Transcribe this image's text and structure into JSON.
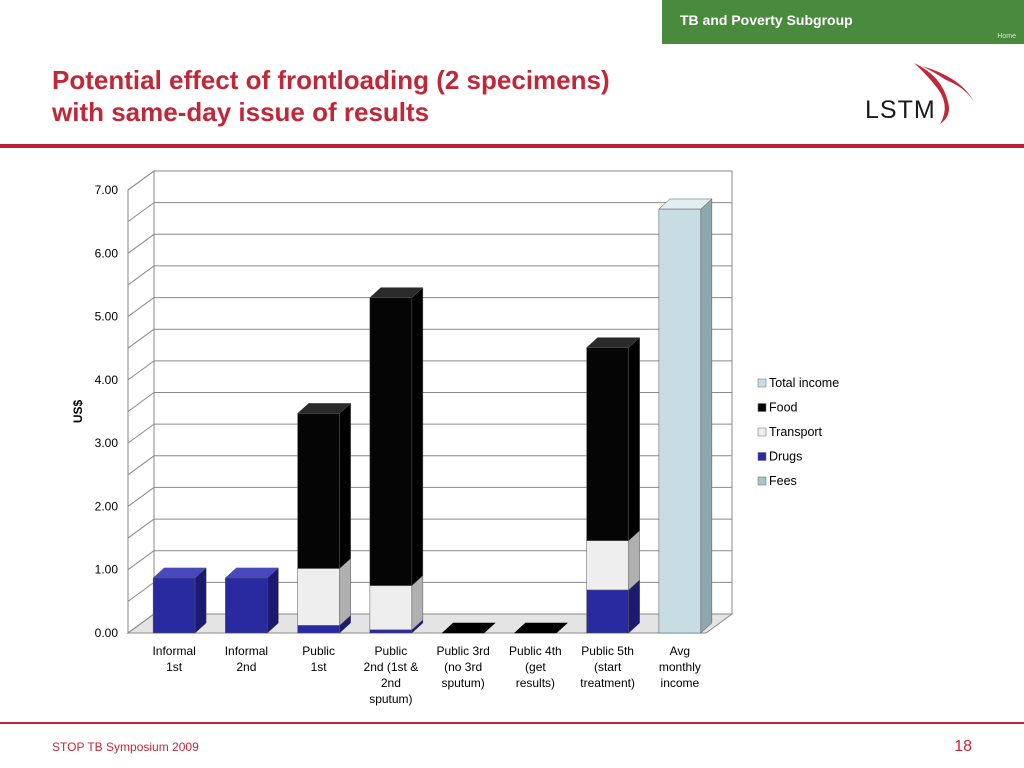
{
  "header": {
    "banner_title": "TB and Poverty Subgroup",
    "banner_home": "Home",
    "title_line1": "Potential effect of frontloading (2 specimens)",
    "title_line2": "with same-day issue of results",
    "logo_text": "LSTM"
  },
  "footer": {
    "left": "STOP TB Symposium 2009",
    "page_number": "18"
  },
  "colors": {
    "brand_red": "#c0283a",
    "banner_green": "#4a8a3c",
    "fees": "#a8c4cc",
    "drugs": "#2a2aa0",
    "transport": "#eeeeee",
    "food": "#000000",
    "total_income": "#c8dde3"
  },
  "chart_data": {
    "type": "bar",
    "stacked": true,
    "three_d": true,
    "ylabel": "US$",
    "ylim": [
      0,
      7
    ],
    "yticks": [
      "0.00",
      "1.00",
      "2.00",
      "3.00",
      "4.00",
      "5.00",
      "6.00",
      "7.00"
    ],
    "grid": true,
    "legend_position": "right",
    "categories": [
      [
        "Informal",
        "1st"
      ],
      [
        "Informal",
        "2nd"
      ],
      [
        "Public",
        "1st"
      ],
      [
        "Public",
        "2nd (1st &",
        "2nd",
        "sputum)"
      ],
      [
        "Public 3rd",
        "(no 3rd",
        "sputum)"
      ],
      [
        "Public 4th",
        "(get",
        "results)"
      ],
      [
        "Public 5th",
        "(start",
        "treatment)"
      ],
      [
        "Avg",
        "monthly",
        "income"
      ]
    ],
    "series": [
      {
        "name": "Fees",
        "values": [
          0,
          0,
          0,
          0,
          0,
          0,
          0,
          0
        ]
      },
      {
        "name": "Drugs",
        "values": [
          0.87,
          0.87,
          0.12,
          0.05,
          0,
          0,
          0.68,
          0
        ]
      },
      {
        "name": "Transport",
        "values": [
          0,
          0,
          0.9,
          0.7,
          0,
          0,
          0.78,
          0
        ]
      },
      {
        "name": "Food",
        "values": [
          0,
          0,
          2.45,
          4.55,
          0,
          0,
          3.05,
          0
        ]
      },
      {
        "name": "Total income",
        "values": [
          0,
          0,
          0,
          0,
          0,
          0,
          0,
          6.7
        ]
      }
    ],
    "legend_order": [
      "Total income",
      "Food",
      "Transport",
      "Drugs",
      "Fees"
    ]
  }
}
